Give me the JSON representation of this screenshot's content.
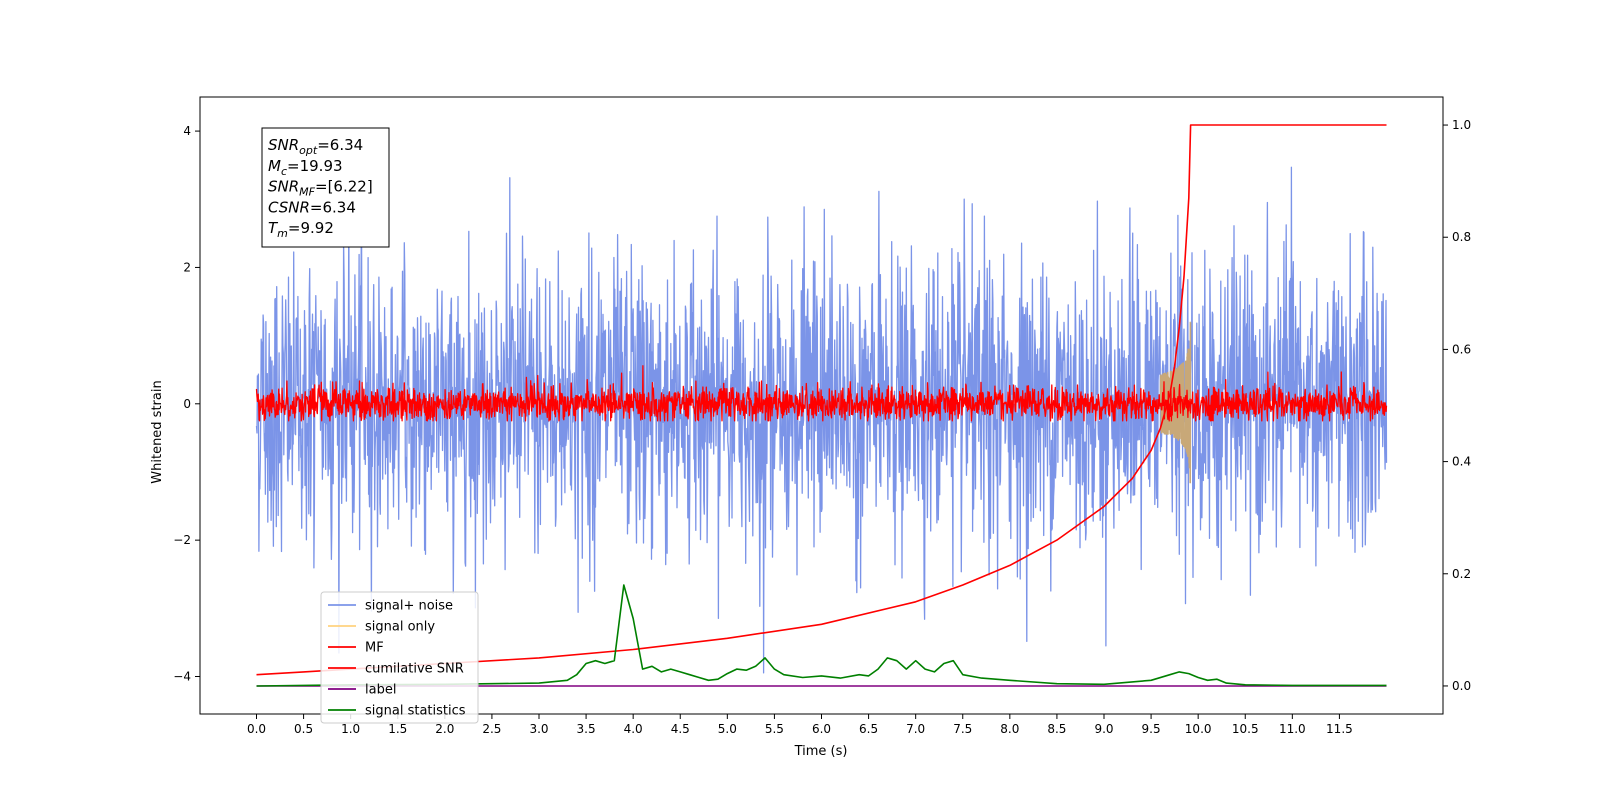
{
  "chart_data": {
    "type": "line",
    "xlabel": "Time (s)",
    "ylabel": "Whitened strain",
    "xlim": [
      -0.6,
      12.6
    ],
    "ylim": [
      -4.55,
      4.5
    ],
    "y2lim": [
      -0.05,
      1.05
    ],
    "x_ticks": [
      0.0,
      0.5,
      1.0,
      1.5,
      2.0,
      2.5,
      3.0,
      3.5,
      4.0,
      4.5,
      5.0,
      5.5,
      6.0,
      6.5,
      7.0,
      7.5,
      8.0,
      8.5,
      9.0,
      9.5,
      10.0,
      10.5,
      11.0,
      11.5
    ],
    "x_tick_labels": [
      "0.0",
      "0.5",
      "1.0",
      "1.5",
      "2.0",
      "2.5",
      "3.0",
      "3.5",
      "4.0",
      "4.5",
      "5.0",
      "5.5",
      "6.0",
      "6.5",
      "7.0",
      "7.5",
      "8.0",
      "8.5",
      "9.0",
      "9.5",
      "10.0",
      "10.5",
      "11.0",
      "11.5"
    ],
    "y_ticks": [
      -4,
      -2,
      0,
      2,
      4
    ],
    "y_tick_labels": [
      "−4",
      "−2",
      "0",
      "2",
      "4"
    ],
    "y2_ticks": [
      0.0,
      0.2,
      0.4,
      0.6,
      0.8,
      1.0
    ],
    "y2_tick_labels": [
      "0.0",
      "0.2",
      "0.4",
      "0.6",
      "0.8",
      "1.0"
    ],
    "legend_position": "bottom-left",
    "annotation": {
      "lines": [
        {
          "sym": "SNR",
          "sub": "opt",
          "value": "=6.34"
        },
        {
          "sym": "M",
          "sub": "c",
          "value": "=19.93"
        },
        {
          "sym": "SNR",
          "sub": "MF",
          "value": "=[6.22]"
        },
        {
          "sym": "CSNR",
          "sub": "",
          "value": "=6.34"
        },
        {
          "sym": "T",
          "sub": "m",
          "value": "=9.92"
        }
      ]
    },
    "series": [
      {
        "name": "signal+ noise",
        "color": "#7b94e8",
        "axis": "left",
        "kind": "noise",
        "x_range": [
          0,
          12
        ],
        "amplitude_sd": 1.05,
        "y_range": [
          -4.1,
          4.05
        ]
      },
      {
        "name": "signal only",
        "color": "#ffd27f",
        "axis": "left",
        "kind": "chirp",
        "x_range": [
          9.6,
          9.92
        ],
        "peak": 1.45,
        "peak_x": 9.92
      },
      {
        "name": "MF",
        "color": "#ff0000",
        "axis": "left",
        "kind": "noise",
        "x_range": [
          0,
          12
        ],
        "amplitude_sd": 0.13,
        "y_range": [
          -0.25,
          0.6
        ]
      },
      {
        "name": "cumilative SNR",
        "color": "#ff0000",
        "axis": "right",
        "x": [
          0.0,
          0.5,
          1.0,
          2.0,
          3.0,
          4.0,
          5.0,
          6.0,
          7.0,
          7.5,
          8.0,
          8.5,
          9.0,
          9.3,
          9.5,
          9.6,
          9.7,
          9.75,
          9.8,
          9.85,
          9.9,
          9.92,
          12.0
        ],
        "y": [
          0.02,
          0.025,
          0.03,
          0.04,
          0.05,
          0.065,
          0.085,
          0.11,
          0.15,
          0.18,
          0.215,
          0.26,
          0.32,
          0.37,
          0.42,
          0.46,
          0.52,
          0.57,
          0.64,
          0.73,
          0.87,
          1.0,
          1.0
        ]
      },
      {
        "name": "label",
        "color": "#800080",
        "axis": "right",
        "x": [
          0.0,
          12.0
        ],
        "y": [
          0.0,
          0.0
        ]
      },
      {
        "name": "signal statistics",
        "color": "#008000",
        "axis": "right",
        "x": [
          0.0,
          1.0,
          2.0,
          3.0,
          3.3,
          3.4,
          3.5,
          3.6,
          3.7,
          3.8,
          3.9,
          4.0,
          4.1,
          4.2,
          4.3,
          4.4,
          4.5,
          4.6,
          4.7,
          4.8,
          4.9,
          5.0,
          5.1,
          5.2,
          5.3,
          5.4,
          5.5,
          5.6,
          5.8,
          6.0,
          6.2,
          6.4,
          6.5,
          6.6,
          6.7,
          6.8,
          6.9,
          7.0,
          7.1,
          7.2,
          7.3,
          7.4,
          7.5,
          7.7,
          8.0,
          8.5,
          9.0,
          9.5,
          9.7,
          9.8,
          9.9,
          10.0,
          10.1,
          10.2,
          10.3,
          10.5,
          11.0,
          11.5,
          12.0
        ],
        "y": [
          0.0,
          0.002,
          0.003,
          0.005,
          0.01,
          0.02,
          0.04,
          0.045,
          0.04,
          0.045,
          0.18,
          0.12,
          0.03,
          0.035,
          0.025,
          0.03,
          0.025,
          0.02,
          0.015,
          0.01,
          0.012,
          0.022,
          0.03,
          0.028,
          0.035,
          0.05,
          0.03,
          0.02,
          0.015,
          0.018,
          0.014,
          0.02,
          0.018,
          0.03,
          0.05,
          0.045,
          0.03,
          0.045,
          0.03,
          0.025,
          0.04,
          0.045,
          0.02,
          0.014,
          0.01,
          0.004,
          0.003,
          0.01,
          0.02,
          0.025,
          0.022,
          0.015,
          0.01,
          0.012,
          0.005,
          0.002,
          0.001,
          0.001,
          0.001
        ]
      }
    ]
  }
}
